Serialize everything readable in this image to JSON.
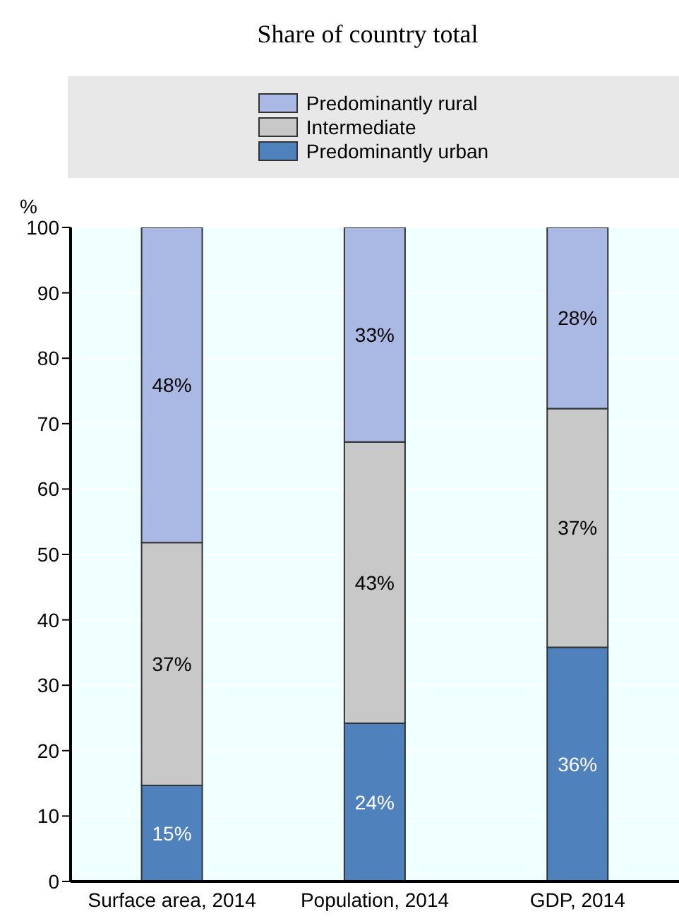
{
  "chart_data": {
    "type": "bar",
    "title": "Share of country total",
    "ylabel": "%",
    "categories": [
      "Surface area, 2014",
      "Population, 2014",
      "GDP, 2014"
    ],
    "stacked": true,
    "ylim": [
      0,
      100
    ],
    "yticks": [
      0,
      10,
      20,
      30,
      40,
      50,
      60,
      70,
      80,
      90,
      100
    ],
    "grid": "y",
    "legend": "top",
    "series": [
      {
        "name": "Predominantly urban",
        "color": "#4f81bd",
        "values": [
          14.7,
          24.2,
          35.8
        ],
        "value_labels": [
          "15%",
          "24%",
          "36%"
        ]
      },
      {
        "name": "Intermediate",
        "color": "#c8c8c8",
        "values": [
          37.1,
          43,
          36.5
        ],
        "value_labels": [
          "37%",
          "43%",
          "37%"
        ]
      },
      {
        "name": "Predominantly rural",
        "color": "#a9b9e3",
        "values": [
          48.2,
          32.8,
          27.7
        ],
        "value_labels": [
          "48%",
          "33%",
          "28%"
        ]
      }
    ]
  }
}
